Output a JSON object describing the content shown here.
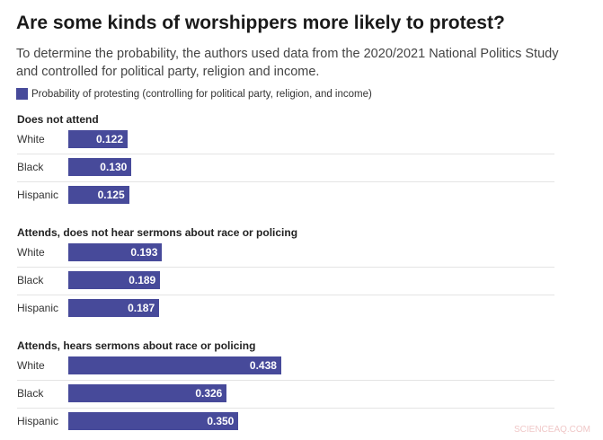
{
  "chart_data": {
    "type": "bar",
    "orientation": "horizontal",
    "title": "Are some kinds of worshippers more likely to protest?",
    "subtitle": "To determine the probability, the authors used data from the 2020/2021 National Politics Study and controlled for political party, religion and income.",
    "legend": [
      {
        "name": "Probability of protesting (controlling for political party, religion, and income)",
        "color": "#474a9a"
      }
    ],
    "legend_placement": "top-left",
    "grid": false,
    "xlim": [
      0,
      0.5
    ],
    "groups": [
      {
        "title": "Does not attend",
        "categories": [
          "White",
          "Black",
          "Hispanic"
        ],
        "values": [
          0.122,
          0.13,
          0.125
        ],
        "labels": [
          "0.122",
          "0.130",
          "0.125"
        ]
      },
      {
        "title": "Attends, does not hear sermons about race or policing",
        "categories": [
          "White",
          "Black",
          "Hispanic"
        ],
        "values": [
          0.193,
          0.189,
          0.187
        ],
        "labels": [
          "0.193",
          "0.189",
          "0.187"
        ]
      },
      {
        "title": "Attends, hears sermons about race or policing",
        "categories": [
          "White",
          "Black",
          "Hispanic"
        ],
        "values": [
          0.438,
          0.326,
          0.35
        ],
        "labels": [
          "0.438",
          "0.326",
          "0.350"
        ]
      }
    ]
  },
  "watermark": "SCIENCEAQ.COM"
}
